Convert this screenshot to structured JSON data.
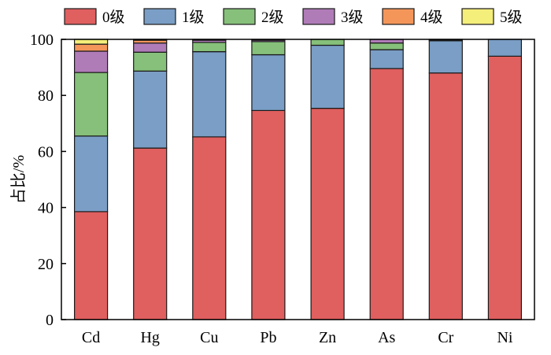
{
  "chart_data": {
    "type": "bar",
    "stacked": true,
    "ylabel": "占比/%",
    "xlabel": "",
    "title": "",
    "ylim": [
      0,
      100
    ],
    "yticks": [
      0,
      20,
      40,
      60,
      80,
      100
    ],
    "categories": [
      "Cd",
      "Hg",
      "Cu",
      "Pb",
      "Zn",
      "As",
      "Cr",
      "Ni"
    ],
    "series": [
      {
        "name": "0级",
        "color": "#e05f5f",
        "values": [
          38.5,
          61.2,
          65.2,
          74.6,
          75.4,
          89.6,
          88.0,
          94.0
        ]
      },
      {
        "name": "1级",
        "color": "#7a9ec5",
        "values": [
          27.0,
          27.5,
          30.4,
          19.9,
          22.5,
          6.7,
          11.5,
          6.0
        ]
      },
      {
        "name": "2级",
        "color": "#86c07a",
        "values": [
          22.7,
          6.7,
          3.3,
          4.7,
          2.1,
          2.4,
          0.3,
          0
        ]
      },
      {
        "name": "3级",
        "color": "#b07cb8",
        "values": [
          7.6,
          3.3,
          0.8,
          0.5,
          0,
          1.3,
          0.2,
          0
        ]
      },
      {
        "name": "4级",
        "color": "#f4965a",
        "values": [
          2.5,
          1.0,
          0.3,
          0.3,
          0,
          0,
          0,
          0
        ]
      },
      {
        "name": "5级",
        "color": "#f4ee7a",
        "values": [
          1.7,
          0.3,
          0,
          0,
          0,
          0,
          0,
          0
        ]
      }
    ],
    "legend_position": "top"
  }
}
